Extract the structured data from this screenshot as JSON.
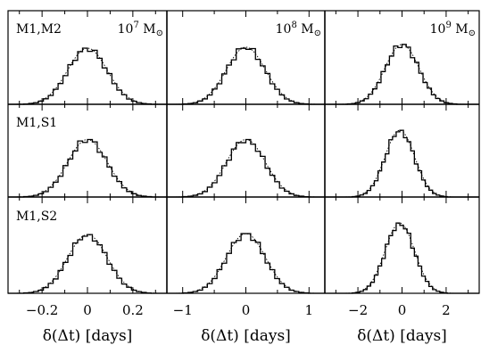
{
  "chart_data": {
    "type": "histogram-grid",
    "title": "",
    "xlabel": "δ(Δt) [days]",
    "ylabel": "",
    "row_labels": [
      "M1,M2",
      "M1,S1",
      "M1,S2"
    ],
    "col_labels": [
      {
        "value": "10",
        "exp": "7",
        "unit": "M",
        "sub": "⊙"
      },
      {
        "value": "10",
        "exp": "8",
        "unit": "M",
        "sub": "⊙"
      },
      {
        "value": "10",
        "exp": "9",
        "unit": "M",
        "sub": "⊙"
      }
    ],
    "columns": [
      {
        "xlim": [
          -0.35,
          0.35
        ],
        "ticks_major": [
          -0.2,
          0,
          0.2
        ],
        "tick_labels": [
          "−0.2",
          "0",
          "0.2"
        ],
        "ticks_minor": [
          -0.3,
          -0.1,
          0.1,
          0.3
        ]
      },
      {
        "xlim": [
          -1.25,
          1.25
        ],
        "ticks_major": [
          -1,
          0,
          1
        ],
        "tick_labels": [
          "−1",
          "0",
          "1"
        ],
        "ticks_minor": [
          -0.5,
          0.5
        ]
      },
      {
        "xlim": [
          -3.5,
          3.5
        ],
        "ticks_major": [
          -2,
          0,
          2
        ],
        "tick_labels": [
          "−2",
          "0",
          "2"
        ],
        "ticks_minor": [
          -3,
          -1,
          1,
          3
        ]
      }
    ],
    "distributions": [
      [
        {
          "mean": 0.0,
          "sigma": 0.085,
          "peak": 0.6,
          "bins": 26
        },
        {
          "mean": 0.0,
          "sigma": 0.3,
          "peak": 0.61,
          "bins": 26
        },
        {
          "mean": 0.0,
          "sigma": 0.75,
          "peak": 0.64,
          "bins": 26
        }
      ],
      [
        {
          "mean": 0.0,
          "sigma": 0.085,
          "peak": 0.62,
          "bins": 26
        },
        {
          "mean": 0.0,
          "sigma": 0.3,
          "peak": 0.62,
          "bins": 26
        },
        {
          "mean": -0.1,
          "sigma": 0.65,
          "peak": 0.72,
          "bins": 26
        }
      ],
      [
        {
          "mean": 0.0,
          "sigma": 0.085,
          "peak": 0.61,
          "bins": 26
        },
        {
          "mean": 0.0,
          "sigma": 0.3,
          "peak": 0.62,
          "bins": 26
        },
        {
          "mean": -0.1,
          "sigma": 0.65,
          "peak": 0.73,
          "bins": 26
        }
      ]
    ],
    "grid": false,
    "legend": "none"
  }
}
